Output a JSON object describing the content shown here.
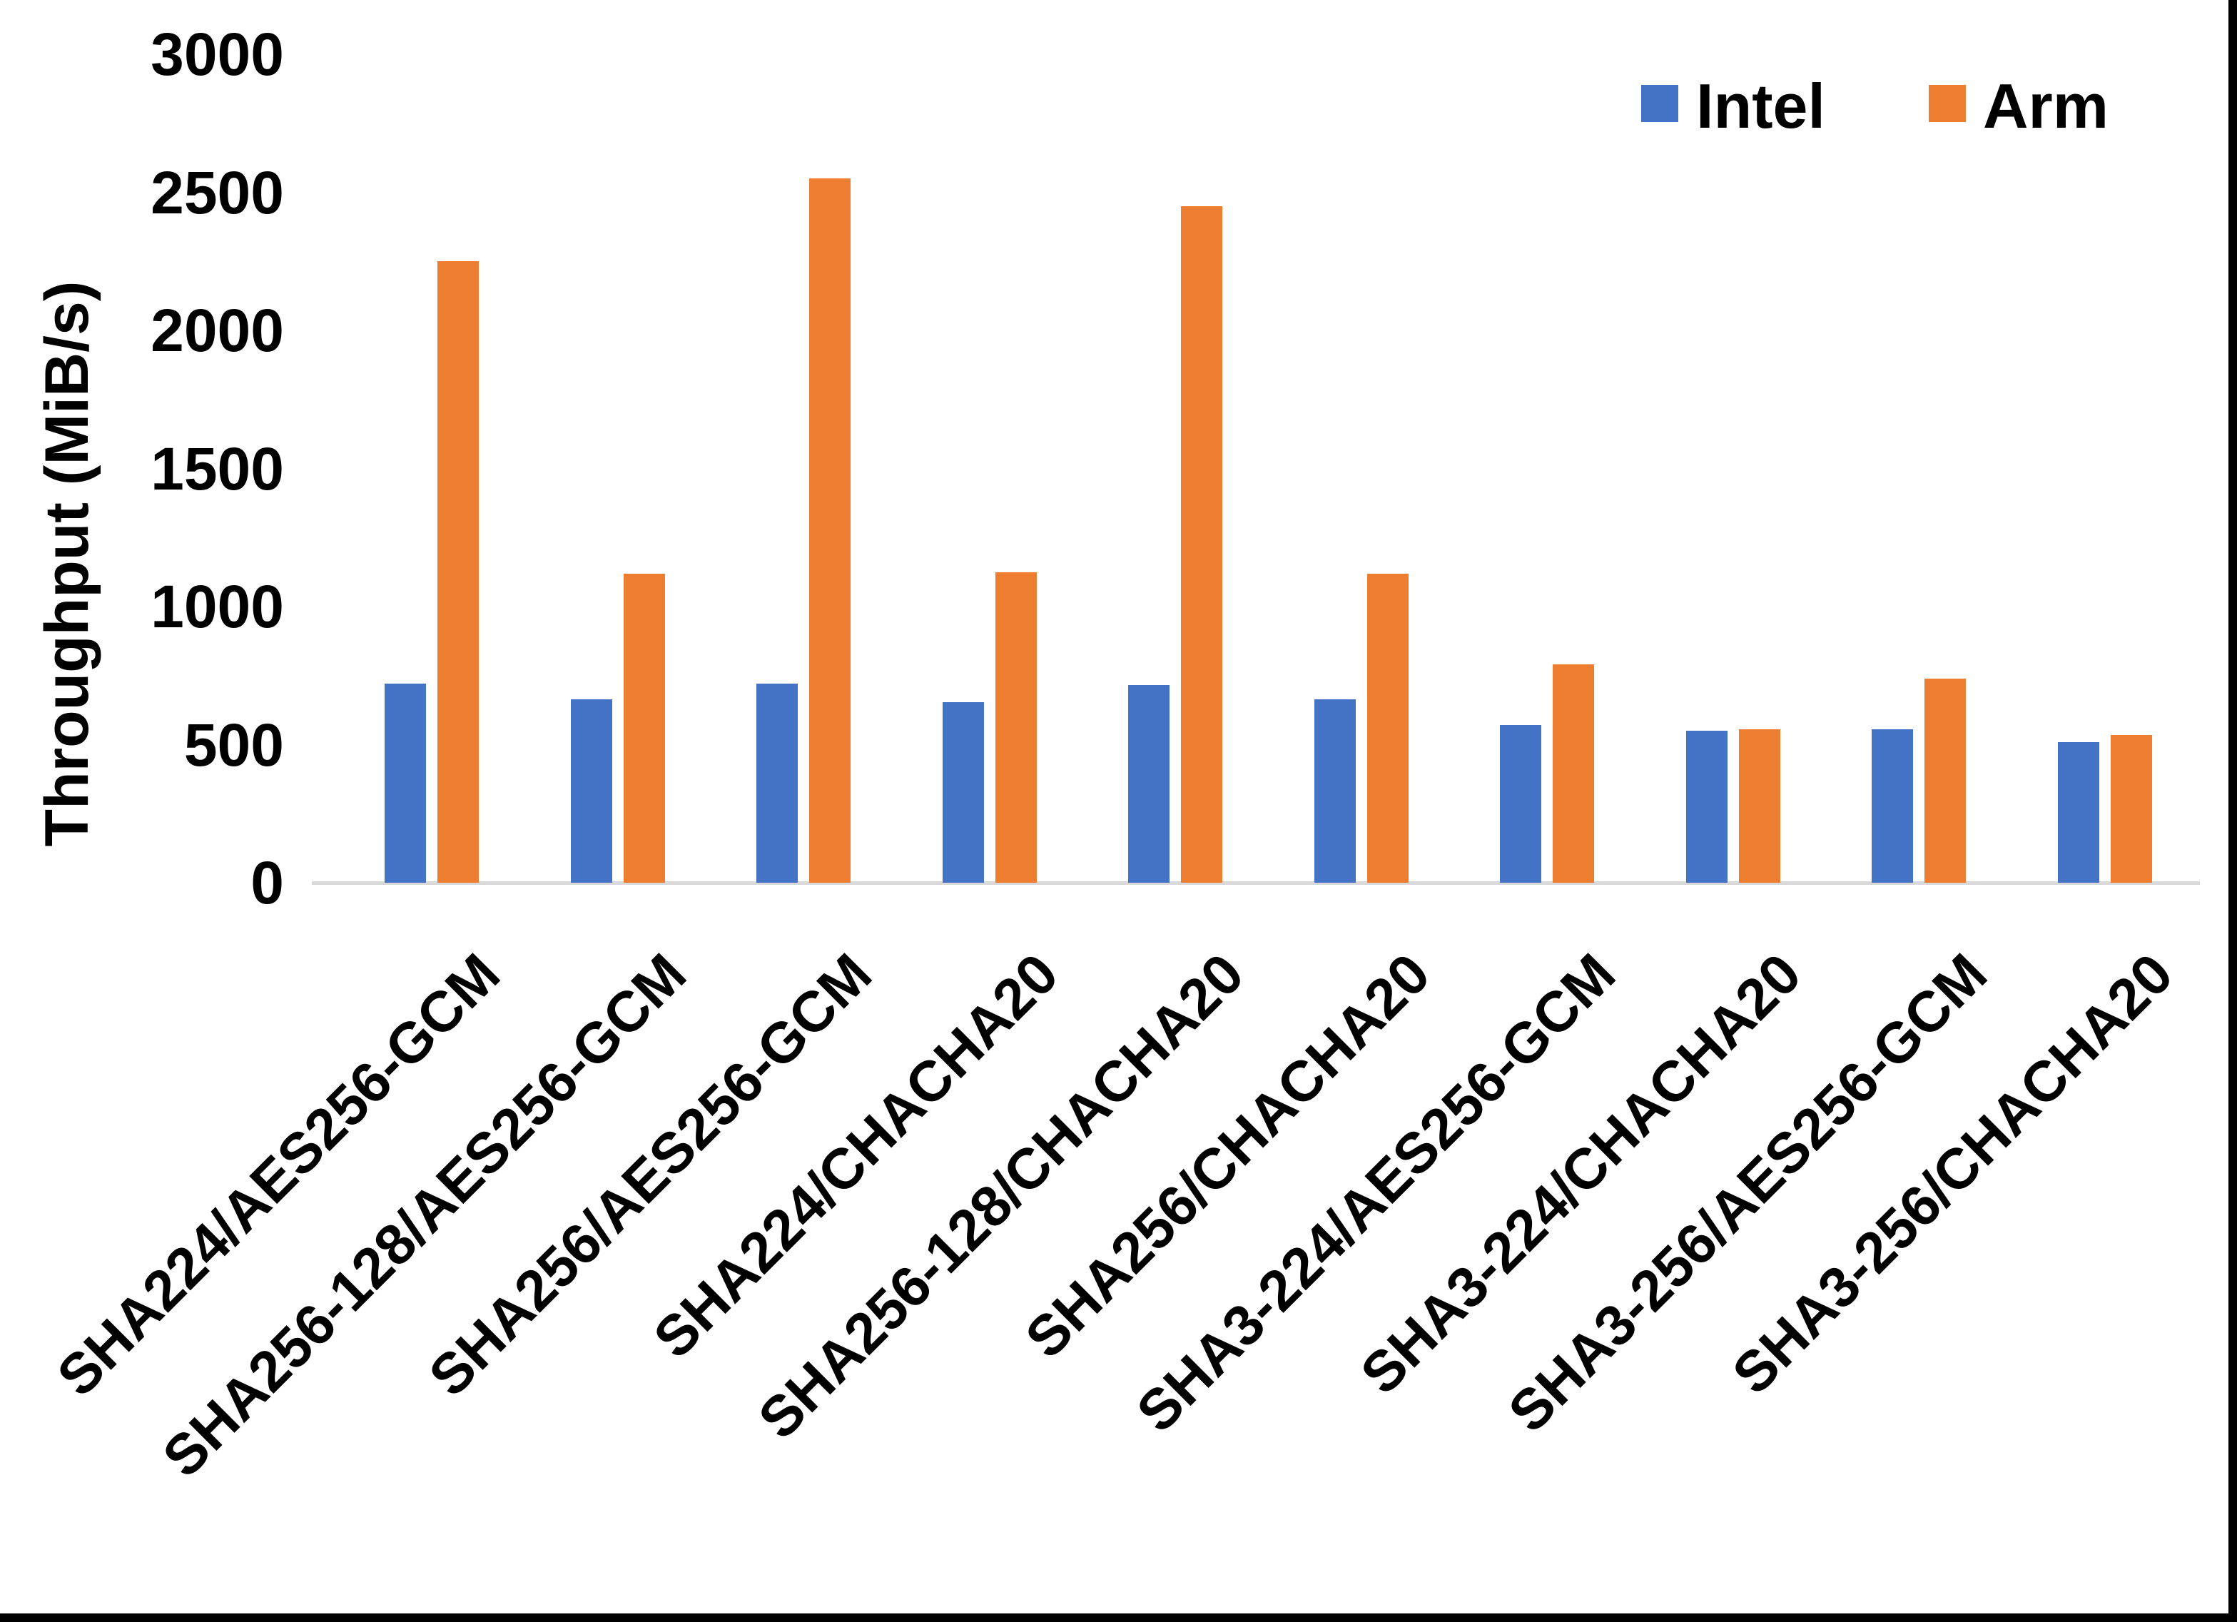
{
  "figure": {
    "background": "#ffffff",
    "edge_color": "#000000",
    "axis_line_color": "#d9d9d9"
  },
  "legend": {
    "items": [
      {
        "label": "Intel",
        "color": "#4472c4"
      },
      {
        "label": "Arm",
        "color": "#ed7d31"
      }
    ],
    "position": "top-right"
  },
  "chart_data": {
    "type": "bar",
    "title": "",
    "xlabel": "",
    "ylabel": "Throughput (MiB/s)",
    "ylim": [
      0,
      3000
    ],
    "yticks": [
      0,
      500,
      1000,
      1500,
      2000,
      2500,
      3000
    ],
    "grid": false,
    "legend_position": "top-right",
    "categories": [
      "SHA224/AES256-GCM",
      "SHA256-128/AES256-GCM",
      "SHA256/AES256-GCM",
      "SHA224/CHACHA20",
      "SHA256-128/CHACHA20",
      "SHA256/CHACHA20",
      "SHA3-224/AES256-GCM",
      "SHA3-224/CHACHA20",
      "SHA3-256/AES256-GCM",
      "SHA3-256/CHACHA20"
    ],
    "series": [
      {
        "name": "Intel",
        "color": "#4472c4",
        "values": [
          720,
          665,
          720,
          655,
          715,
          665,
          570,
          550,
          555,
          510
        ]
      },
      {
        "name": "Arm",
        "color": "#ed7d31",
        "values": [
          2250,
          1120,
          2550,
          1125,
          2450,
          1120,
          790,
          555,
          740,
          535
        ]
      }
    ]
  }
}
